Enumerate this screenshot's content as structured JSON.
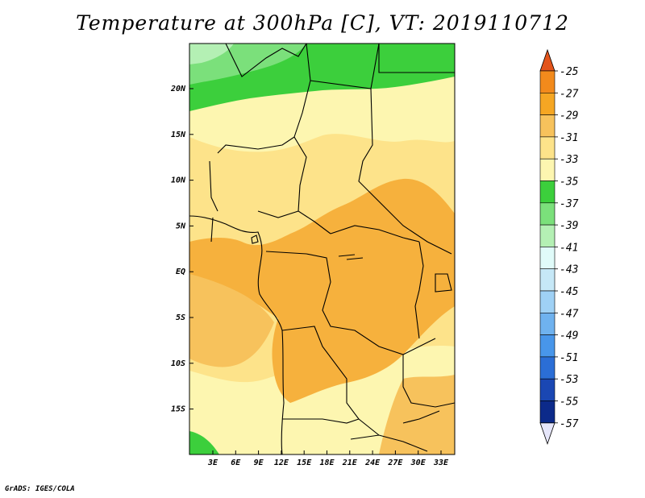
{
  "title": "Temperature at 300hPa [C], VT: 2019110712",
  "credit": "GrADS: IGES/COLA",
  "map": {
    "lat_labels": [
      "20N",
      "15N",
      "10N",
      "5N",
      "EQ",
      "5S",
      "10S",
      "15S"
    ],
    "lon_labels": [
      "3E",
      "6E",
      "9E",
      "12E",
      "15E",
      "18E",
      "21E",
      "24E",
      "27E",
      "30E",
      "33E"
    ],
    "fill_colors": {
      "green_dark": "#3ccf3c",
      "green_mid": "#7be07b",
      "green_light": "#b4f0b4",
      "yellow_pale": "#fdf6b0",
      "yellow": "#fde38a",
      "orange_light": "#f7c25c",
      "orange": "#f6b13d"
    }
  },
  "colorbar": {
    "labels": [
      "-25",
      "-27",
      "-29",
      "-31",
      "-33",
      "-35",
      "-37",
      "-39",
      "-41",
      "-43",
      "-45",
      "-47",
      "-49",
      "-51",
      "-53",
      "-55",
      "-57"
    ],
    "colors": [
      "#e3541b",
      "#f28a1c",
      "#f5a623",
      "#f7c25c",
      "#fde38a",
      "#fdf6b0",
      "#3ccf3c",
      "#7be07b",
      "#b4f0b4",
      "#e0fbf9",
      "#c6e8f7",
      "#9fd1f5",
      "#6fb2ef",
      "#4896ea",
      "#2b6ed6",
      "#1a47b3",
      "#0c2a8a",
      "#0a1a6b"
    ],
    "top_arrow_color": "#e3541b",
    "bottom_arrow_color": "#e6e6fa"
  }
}
